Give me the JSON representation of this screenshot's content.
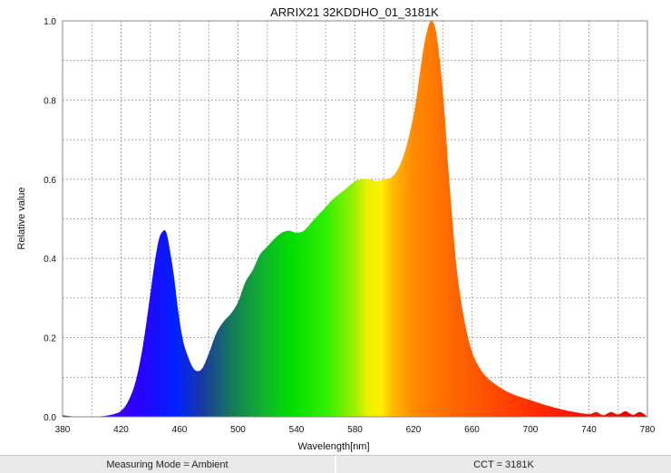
{
  "chart_data": {
    "type": "area",
    "title": "ARRIX21 32KDDHO_01_3181K",
    "xlabel": "Wavelength[nm]",
    "ylabel": "Relative value",
    "xlim": [
      380,
      780
    ],
    "ylim": [
      0,
      1.0
    ],
    "x_ticks": [
      "380",
      "420",
      "460",
      "500",
      "540",
      "580",
      "620",
      "660",
      "700",
      "740",
      "780"
    ],
    "y_ticks": [
      "0.0",
      "0.2",
      "0.4",
      "0.6",
      "0.8",
      "1.0"
    ],
    "grid": true,
    "fill": "spectral gradient",
    "x": [
      380,
      390,
      400,
      405,
      410,
      415,
      420,
      425,
      430,
      435,
      440,
      443,
      446,
      449,
      451,
      453,
      456,
      459,
      462,
      465,
      470,
      475,
      480,
      485,
      490,
      495,
      500,
      505,
      510,
      515,
      520,
      525,
      530,
      535,
      540,
      545,
      550,
      555,
      560,
      565,
      570,
      575,
      580,
      585,
      590,
      595,
      600,
      605,
      610,
      615,
      620,
      623,
      626,
      629,
      632,
      635,
      638,
      641,
      644,
      647,
      650,
      655,
      660,
      665,
      670,
      675,
      680,
      685,
      690,
      695,
      700,
      710,
      720,
      730,
      740,
      745,
      750,
      755,
      760,
      765,
      770,
      775,
      780
    ],
    "values": [
      0.004,
      0.0,
      0.0,
      0.001,
      0.003,
      0.007,
      0.015,
      0.04,
      0.09,
      0.18,
      0.31,
      0.39,
      0.45,
      0.47,
      0.465,
      0.43,
      0.36,
      0.27,
      0.2,
      0.16,
      0.12,
      0.12,
      0.16,
      0.21,
      0.24,
      0.26,
      0.29,
      0.34,
      0.37,
      0.41,
      0.43,
      0.45,
      0.465,
      0.47,
      0.465,
      0.47,
      0.49,
      0.51,
      0.53,
      0.55,
      0.565,
      0.58,
      0.595,
      0.6,
      0.6,
      0.595,
      0.6,
      0.605,
      0.63,
      0.68,
      0.76,
      0.83,
      0.91,
      0.97,
      1.0,
      0.98,
      0.9,
      0.78,
      0.62,
      0.48,
      0.36,
      0.24,
      0.165,
      0.125,
      0.1,
      0.085,
      0.072,
      0.062,
      0.054,
      0.048,
      0.042,
      0.03,
      0.02,
      0.012,
      0.007,
      0.012,
      0.004,
      0.012,
      0.006,
      0.014,
      0.005,
      0.012,
      0.0
    ]
  },
  "status_bar": {
    "measuring_mode": "Measuring Mode = Ambient",
    "cct": "CCT = 3181K"
  }
}
